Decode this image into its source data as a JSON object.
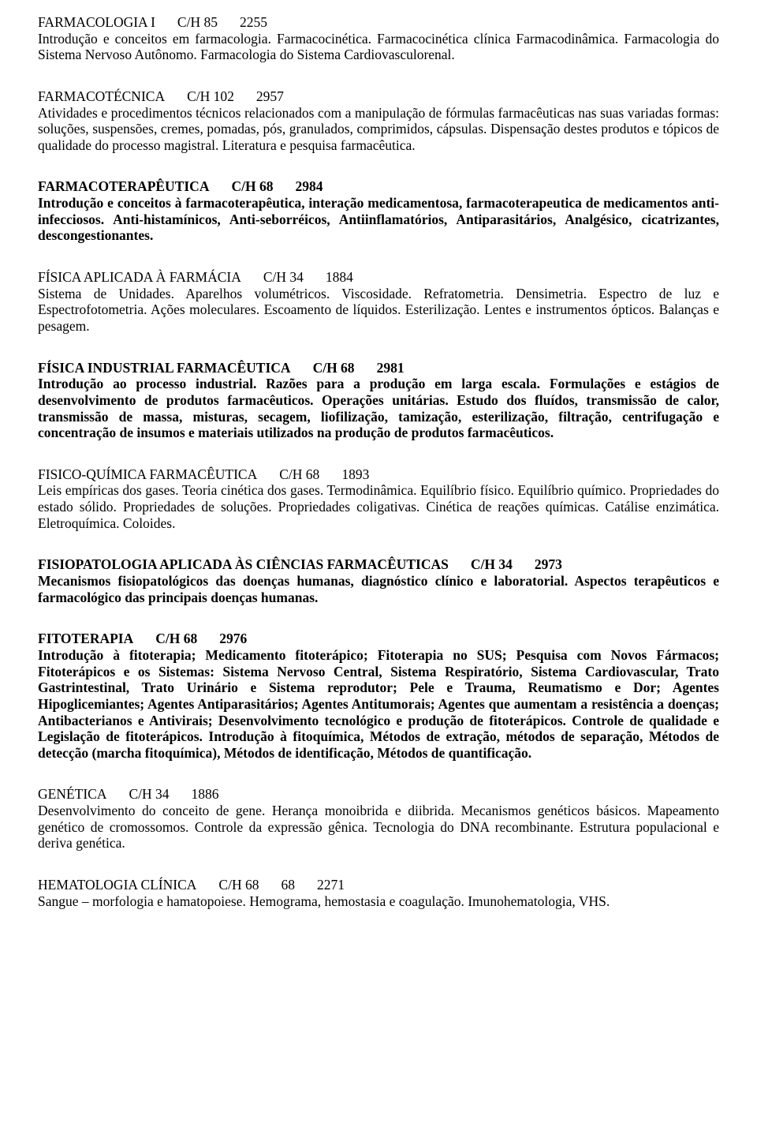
{
  "entries": [
    {
      "title": "FARMACOLOGIA I",
      "ch": "C/H 85",
      "code": "2255",
      "title_bold": false,
      "desc": "Introdução e conceitos em farmacologia. Farmacocinética. Farmacocinética clínica Farmacodinâmica. Farmacologia do Sistema Nervoso Autônomo. Farmacologia do Sistema Cardiovasculorenal.",
      "desc_bold": false
    },
    {
      "title": "FARMACOTÉCNICA",
      "ch": "C/H 102",
      "code": "2957",
      "title_bold": false,
      "desc": "Atividades e procedimentos técnicos relacionados com a manipulação de fórmulas farmacêuticas nas suas variadas formas: soluções, suspensões, cremes, pomadas, pós, granulados, comprimidos, cápsulas. Dispensação destes produtos e tópicos de qualidade do processo magistral. Literatura e pesquisa farmacêutica.",
      "desc_bold": false
    },
    {
      "title": "FARMACOTERAPÊUTICA",
      "ch": "C/H 68",
      "code": "2984",
      "title_bold": true,
      "desc": "Introdução e conceitos à farmacoterapêutica, interação medicamentosa, farmacoterapeutica de medicamentos anti-infecciosos. Anti-histamínicos, Anti-seborréicos, Antiinflamatórios, Antiparasitários, Analgésico, cicatrizantes, descongestionantes.",
      "desc_bold": true
    },
    {
      "title": "FÍSICA APLICADA À FARMÁCIA",
      "ch": "C/H 34",
      "code": "1884",
      "title_bold": false,
      "desc": "Sistema de Unidades. Aparelhos volumétricos. Viscosidade. Refratometria. Densimetria. Espectro de luz e Espectrofotometria. Ações moleculares. Escoamento de líquidos. Esterilização. Lentes e instrumentos ópticos. Balanças e pesagem.",
      "desc_bold": false
    },
    {
      "title": "FÍSICA INDUSTRIAL FARMACÊUTICA",
      "ch": "C/H 68",
      "code": "2981",
      "title_bold": true,
      "desc": "Introdução ao processo industrial. Razões para a produção em larga escala. Formulações e estágios de desenvolvimento de produtos farmacêuticos. Operações unitárias. Estudo dos fluídos, transmissão de calor, transmissão de massa, misturas, secagem, liofilização, tamização, esterilização, filtração, centrifugação e concentração de insumos e materiais utilizados na produção de produtos farmacêuticos.",
      "desc_bold": true
    },
    {
      "title": "FISICO-QUÍMICA FARMACÊUTICA",
      "ch": "C/H 68",
      "code": "1893",
      "title_bold": false,
      "desc": "Leis empíricas dos gases. Teoria cinética dos gases. Termodinâmica. Equilíbrio físico. Equilíbrio químico. Propriedades do estado sólido. Propriedades de soluções. Propriedades coligativas. Cinética de reações químicas. Catálise enzimática. Eletroquímica. Coloides.",
      "desc_bold": false
    },
    {
      "title": "FISIOPATOLOGIA APLICADA ÀS CIÊNCIAS FARMACÊUTICAS",
      "ch": "C/H 34",
      "code": "2973",
      "title_bold": true,
      "desc": "Mecanismos fisiopatológicos das doenças humanas, diagnóstico clínico e laboratorial. Aspectos terapêuticos e farmacológico das principais doenças humanas.",
      "desc_bold": true
    },
    {
      "title": "FITOTERAPIA",
      "ch": "C/H 68",
      "code": "2976",
      "title_bold": true,
      "desc": "Introdução à fitoterapia; Medicamento fitoterápico; Fitoterapia no SUS; Pesquisa com Novos Fármacos; Fitoterápicos e os Sistemas: Sistema Nervoso Central, Sistema Respiratório, Sistema Cardiovascular, Trato Gastrintestinal, Trato Urinário e Sistema reprodutor; Pele e Trauma, Reumatismo e Dor; Agentes Hipoglicemiantes; Agentes Antiparasitários; Agentes Antitumorais; Agentes que aumentam a resistência a doenças; Antibacterianos e Antivirais; Desenvolvimento tecnológico e produção de fitoterápicos. Controle de qualidade e Legislação de fitoterápicos. Introdução à fitoquímica, Métodos de extração, métodos de separação, Métodos de detecção (marcha fitoquímica), Métodos de identificação, Métodos de quantificação.",
      "desc_bold": true
    },
    {
      "title": "GENÉTICA",
      "ch": "C/H 34",
      "code": "1886",
      "title_bold": false,
      "desc": "Desenvolvimento do conceito de gene. Herança monoibrida e diibrida. Mecanismos genéticos básicos. Mapeamento genético de cromossomos. Controle da expressão gênica. Tecnologia do DNA recombinante. Estrutura populacional e deriva genética.",
      "desc_bold": false
    },
    {
      "title": "HEMATOLOGIA CLÍNICA",
      "ch": "C/H 68",
      "extra": "68",
      "code": "2271",
      "title_bold": false,
      "desc": "Sangue – morfologia e hamatopoiese. Hemograma, hemostasia e coagulação. Imunohematologia, VHS.",
      "desc_bold": false
    }
  ]
}
